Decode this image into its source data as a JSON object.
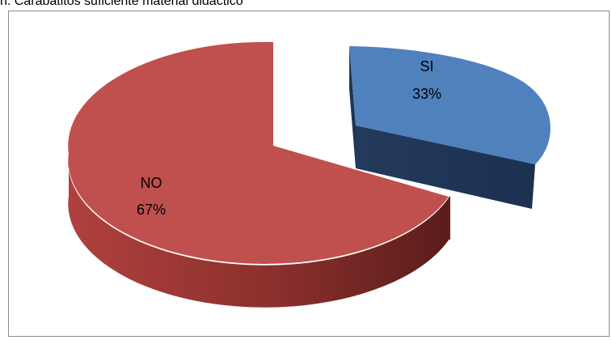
{
  "header": {
    "title": "h. Carabatitos suficiente material didáctico"
  },
  "chart_data": {
    "type": "pie",
    "style": "3d-exploded",
    "categories": [
      "SI",
      "NO"
    ],
    "values": [
      33,
      67
    ],
    "labels": [
      "33%",
      "67%"
    ],
    "colors": [
      "#4f81bd",
      "#c0504d"
    ],
    "legend": "none"
  }
}
